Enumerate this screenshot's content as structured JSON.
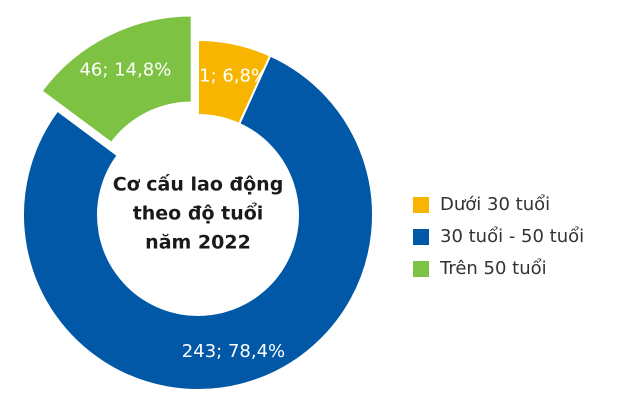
{
  "chart_data": {
    "type": "donut",
    "title": [
      "Cơ cấu lao động",
      "theo độ tuổi",
      "năm 2022"
    ],
    "categories": [
      "Dưới 30 tuổi",
      "30 tuổi - 50 tuổi",
      "Trên 50 tuổi"
    ],
    "values": [
      21,
      243,
      46
    ],
    "value_labels": [
      "21; 6,8%",
      "243; 78,4%",
      "46; 14,8%"
    ],
    "colors": [
      "#f7b500",
      "#0058a6",
      "#7dc243"
    ],
    "exploded": [
      false,
      false,
      true
    ],
    "legend": "right"
  }
}
